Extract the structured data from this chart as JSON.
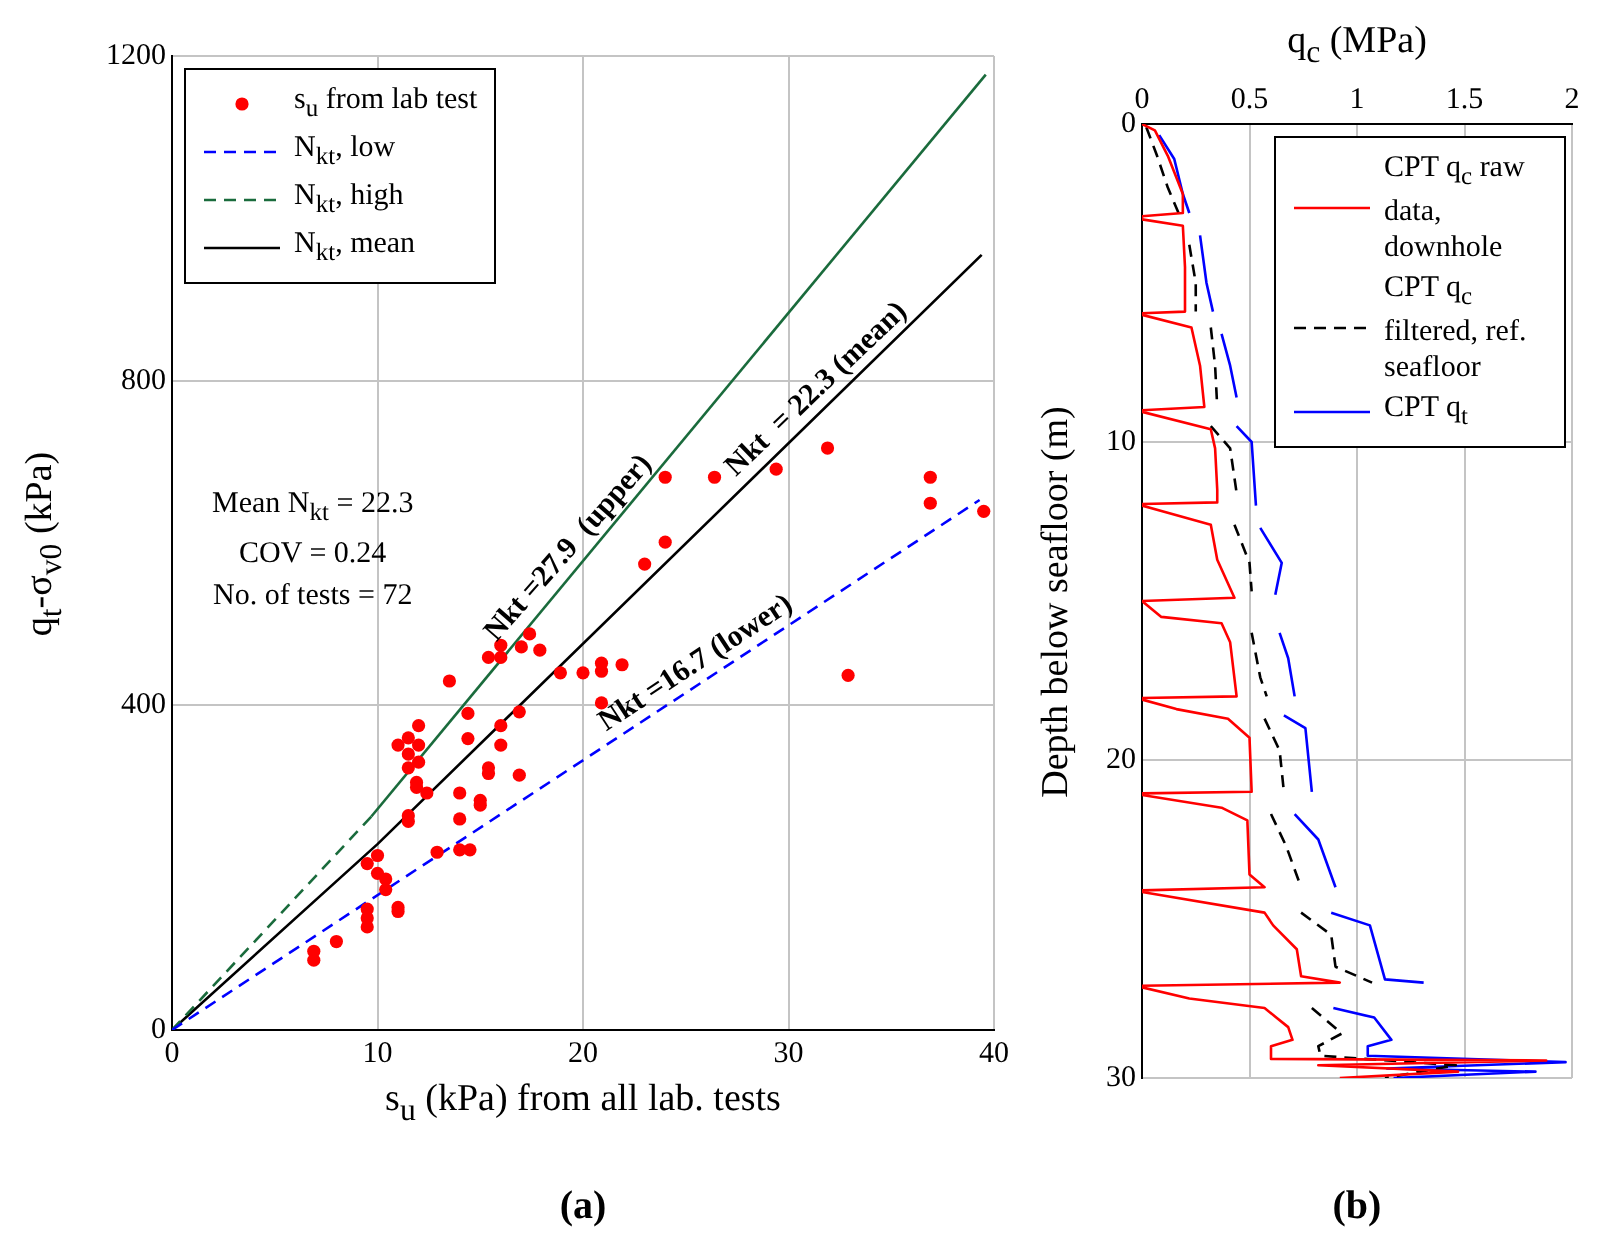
{
  "chart_data": [
    {
      "type": "scatter",
      "title": "(a)",
      "xlabel": "s$_{u}$ (kPa) from all lab. tests",
      "ylabel": "q$_{t}$-σ$_{v0}$ (kPa)",
      "xlim": [
        0,
        40
      ],
      "xticks": [
        0,
        10,
        20,
        30,
        40
      ],
      "ylim": [
        0,
        1200
      ],
      "yticks": [
        0,
        400,
        800,
        1200
      ],
      "grid": true,
      "legend": "top left",
      "annotations": [
        "Mean N$_{kt}$  = 22.3",
        "COV = 0.24",
        "No. of tests = 72",
        {
          "text": "Nkt =27.9  (upper)",
          "x": 20,
          "y": 578
        },
        {
          "text": "Nkt  = 22.3 (mean)",
          "x": 32,
          "y": 772
        },
        {
          "text": "Nkt =16.7 (lower)",
          "x": 26,
          "y": 432
        }
      ],
      "series": [
        {
          "name": "s$_{u}$ from lab test",
          "type": "scatter",
          "color": "#ff0000",
          "marker": "circle",
          "x": [
            6.9,
            6.9,
            8.0,
            9.5,
            9.5,
            9.5,
            9.5,
            10.0,
            10.0,
            10.4,
            10.4,
            11.0,
            11.0,
            11.5,
            11.5,
            11.5,
            11.0,
            11.5,
            11.5,
            12.0,
            12.0,
            12.0,
            13.5,
            11.9,
            11.9,
            12.4,
            12.9,
            14.0,
            14.0,
            14.0,
            14.5,
            14.4,
            14.4,
            15.0,
            15.0,
            15.4,
            15.4,
            16.0,
            16.0,
            16.9,
            16.9,
            15.4,
            16.0,
            16.0,
            17.0,
            17.4,
            17.9,
            18.9,
            20.0,
            20.9,
            20.9,
            20.9,
            21.9,
            23.0,
            24.0,
            24.0,
            26.4,
            29.4,
            31.9,
            36.9,
            36.9,
            39.5,
            32.9
          ],
          "values": [
            97,
            86,
            109,
            149,
            138,
            127,
            205,
            193,
            215,
            186,
            173,
            151,
            146,
            264,
            257,
            323,
            351,
            360,
            340,
            375,
            351,
            330,
            430,
            305,
            299,
            292,
            219,
            292,
            260,
            222,
            222,
            390,
            359,
            283,
            277,
            323,
            316,
            375,
            351,
            392,
            314,
            459,
            474,
            459,
            472,
            488,
            468,
            440,
            440,
            452,
            442,
            403,
            450,
            574,
            601,
            681,
            681,
            691,
            717,
            681,
            649,
            639,
            437
          ]
        },
        {
          "name": "N$_{kt}$, low",
          "type": "line",
          "color": "#0000ff",
          "line_style": "dashed",
          "x": [
            0,
            39.3
          ],
          "values": [
            0,
            653
          ]
        },
        {
          "name": "N$_{kt}$, high",
          "type": "line",
          "color": "#1a6b3c",
          "line_style": "dashed",
          "x": [
            0,
            9.7
          ],
          "values": [
            0,
            263
          ]
        },
        {
          "name": "N$_{kt}$, mean",
          "type": "line",
          "color": "#000000",
          "line_style": "solid",
          "x": [
            0,
            10,
            39.4
          ],
          "values": [
            0,
            229,
            955
          ]
        },
        {
          "type": "line",
          "color": "#1a6b3c",
          "line_style": "solid",
          "x": [
            9.7,
            39.6
          ],
          "values": [
            263,
            1177
          ]
        }
      ]
    },
    {
      "type": "line",
      "title": "(b)",
      "xlabel": "q$_{c}$ (MPa)",
      "ylabel": "Depth below seafloor (m)",
      "xlim": [
        0,
        2
      ],
      "xticks": [
        0,
        0.5,
        1,
        1.5,
        2
      ],
      "ylim": [
        30,
        0
      ],
      "yticks": [
        0,
        10,
        20,
        30
      ],
      "grid": true,
      "legend": "top right",
      "series": [
        {
          "name": "CPT q$_{c}$ raw data, downhole",
          "color": "#ff0000",
          "line_style": "solid",
          "x": [
            0,
            0.06,
            0.12,
            0.19,
            0.19,
            0,
            0,
            0.19,
            0.2,
            0.2,
            0,
            0,
            0.23,
            0.27,
            0.29,
            0,
            0,
            0.32,
            0.34,
            0.35,
            0.35,
            0,
            0,
            0.32,
            0.35,
            0.43,
            0,
            0.09,
            0.37,
            0.41,
            0.44,
            0,
            0,
            0.16,
            0.4,
            0.5,
            0.51,
            0,
            0,
            0.37,
            0.49,
            0.5,
            0.57,
            0,
            0,
            0.57,
            0.61,
            0.72,
            0.74,
            0.92,
            0,
            0,
            0.22,
            0.57,
            0.68,
            0.7,
            0.6,
            0.6,
            1.88,
            0.82,
            1.47,
            0.92
          ],
          "values": [
            0,
            0.2,
            1.0,
            2.2,
            2.8,
            2.9,
            3.0,
            3.2,
            4.5,
            5.9,
            5.95,
            6.0,
            6.4,
            7.6,
            8.9,
            9.0,
            9.05,
            9.6,
            10.2,
            11.5,
            11.9,
            11.95,
            12.0,
            12.6,
            13.7,
            14.9,
            15.0,
            15.5,
            15.7,
            16.3,
            18.0,
            18.05,
            18.1,
            18.4,
            18.7,
            19.3,
            21.0,
            21.05,
            21.1,
            21.5,
            21.9,
            23.6,
            24.0,
            24.1,
            24.15,
            24.8,
            25.2,
            25.95,
            26.8,
            27.0,
            27.1,
            27.15,
            27.5,
            27.8,
            28.4,
            28.8,
            29.0,
            29.4,
            29.45,
            29.6,
            29.8,
            30.0
          ]
        },
        {
          "name": "CPT q$_{c}$ filtered, ref. seafloor",
          "color": "#000000",
          "line_style": "dashed",
          "x": [
            0.02,
            0.07,
            0.12,
            0.17,
            null,
            0.22,
            0.25,
            0.25,
            null,
            0.32,
            0.34,
            0.35,
            null,
            0.32,
            0.41,
            0.44,
            null,
            0.43,
            0.5,
            0.51,
            null,
            0.51,
            0.55,
            0.58,
            null,
            0.57,
            0.64,
            0.66,
            null,
            0.6,
            0.67,
            0.74,
            null,
            0.74,
            0.88,
            0.9,
            1.07,
            null,
            0.79,
            0.93,
            0.82,
            0.83,
            1.46,
            1.13
          ],
          "values": [
            0.1,
            1.0,
            2.0,
            2.8,
            null,
            3.8,
            5.0,
            5.9,
            null,
            6.4,
            7.6,
            8.9,
            null,
            9.5,
            10.2,
            11.6,
            null,
            12.6,
            13.8,
            14.7,
            null,
            16.0,
            17.4,
            18.0,
            null,
            18.7,
            19.7,
            21.0,
            null,
            21.7,
            22.7,
            24.0,
            null,
            24.8,
            25.5,
            26.5,
            27.0,
            null,
            27.8,
            28.6,
            29.0,
            29.3,
            29.6,
            30.0
          ]
        },
        {
          "name": "CPT q$_{t}$",
          "color": "#0000ff",
          "line_style": "solid",
          "x": [
            0.08,
            0.15,
            0.19,
            0.22,
            null,
            0.27,
            0.3,
            0.33,
            null,
            0.37,
            0.41,
            0.44,
            null,
            0.44,
            0.51,
            0.53,
            null,
            0.55,
            0.65,
            0.62,
            null,
            0.64,
            0.68,
            0.71,
            null,
            0.66,
            0.76,
            0.79,
            null,
            0.71,
            0.82,
            0.9,
            null,
            0.88,
            1.06,
            1.13,
            1.31,
            null,
            0.89,
            1.08,
            1.16,
            1.05,
            1.05,
            1.97,
            1.14,
            1.83,
            1.17
          ],
          "values": [
            0.35,
            1.1,
            2.2,
            2.8,
            null,
            3.5,
            5.0,
            5.9,
            null,
            6.6,
            7.6,
            8.6,
            null,
            9.5,
            10.0,
            12.0,
            null,
            12.7,
            13.8,
            14.8,
            null,
            16.0,
            16.8,
            18.0,
            null,
            18.6,
            19.0,
            21.0,
            null,
            21.7,
            22.5,
            24.0,
            null,
            24.8,
            25.2,
            26.9,
            27.0,
            null,
            27.8,
            28.1,
            28.8,
            29.0,
            29.3,
            29.5,
            29.7,
            29.8,
            30.0
          ]
        }
      ]
    }
  ]
}
